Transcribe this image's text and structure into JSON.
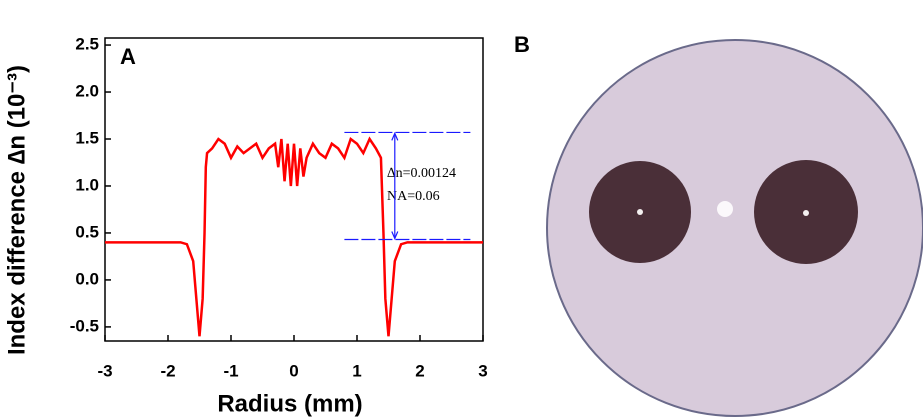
{
  "chart_data": {
    "type": "line",
    "panel_label": "A",
    "xlabel": "Radius (mm)",
    "ylabel": "Index difference ∆n (10⁻³)",
    "xlim": [
      -3,
      3
    ],
    "ylim": [
      -0.65,
      2.575
    ],
    "xticks": [
      -3,
      -2,
      -1,
      0,
      1,
      2,
      3
    ],
    "yticks": [
      {
        "value": -0.5,
        "label": "-0.5"
      },
      {
        "value": 0,
        "label": "0.0"
      },
      0.5,
      {
        "value": 1,
        "label": "1.0"
      },
      1.5,
      {
        "value": 2,
        "label": "2.0"
      },
      2.5
    ],
    "color": "#ff0000",
    "x": [
      -3,
      -2.5,
      -2,
      -1.8,
      -1.7,
      -1.6,
      -1.55,
      -1.5,
      -1.45,
      -1.42,
      -1.4,
      -1.38,
      -1.3,
      -1.2,
      -1.1,
      -1,
      -0.9,
      -0.8,
      -0.7,
      -0.6,
      -0.5,
      -0.4,
      -0.3,
      -0.25,
      -0.2,
      -0.15,
      -0.1,
      -0.05,
      0,
      0.05,
      0.1,
      0.15,
      0.2,
      0.3,
      0.4,
      0.5,
      0.6,
      0.7,
      0.8,
      0.9,
      1,
      1.1,
      1.2,
      1.3,
      1.38,
      1.42,
      1.45,
      1.5,
      1.55,
      1.6,
      1.7,
      1.8,
      2,
      2.5,
      3
    ],
    "values": [
      0.4,
      0.4,
      0.4,
      0.4,
      0.38,
      0.2,
      -0.2,
      -0.6,
      -0.2,
      0.5,
      1.2,
      1.35,
      1.4,
      1.5,
      1.45,
      1.3,
      1.42,
      1.35,
      1.4,
      1.45,
      1.3,
      1.4,
      1.45,
      1.2,
      1.5,
      1.05,
      1.45,
      1.0,
      1.45,
      1.0,
      1.4,
      1.1,
      1.3,
      1.45,
      1.35,
      1.3,
      1.45,
      1.4,
      1.3,
      1.5,
      1.45,
      1.35,
      1.5,
      1.4,
      1.3,
      0.5,
      -0.2,
      -0.6,
      -0.2,
      0.2,
      0.38,
      0.4,
      0.4,
      0.4,
      0.4
    ],
    "hlines": [
      1.57,
      0.43
    ],
    "hline_color": "#1a1aff",
    "annotations": [
      "∆n=0.00124",
      "NA=0.06"
    ]
  },
  "photo": {
    "label": "B"
  }
}
